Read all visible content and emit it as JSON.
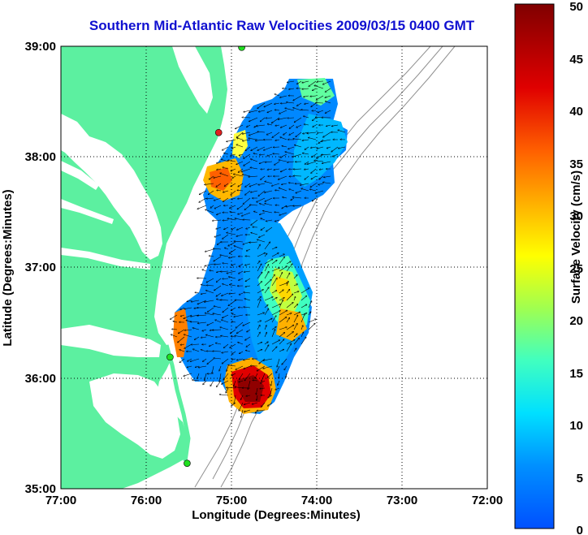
{
  "title": "Southern Mid-Atlantic Raw Velocities 2009/03/15 0400 GMT",
  "axes": {
    "xlabel": "Longitude (Degrees:Minutes)",
    "ylabel": "Latitude (Degrees:Minutes)",
    "x_ticks": [
      "77:00",
      "76:00",
      "75:00",
      "74:00",
      "73:00",
      "72:00"
    ],
    "y_ticks": [
      "39:00",
      "38:00",
      "37:00",
      "36:00",
      "35:00"
    ],
    "x_range": [
      -77,
      -72
    ],
    "y_range": [
      35,
      39
    ]
  },
  "colorbar": {
    "label": "Surface Velocity (cm/s)",
    "ticks": [
      "50",
      "45",
      "40",
      "35",
      "30",
      "25",
      "20",
      "15",
      "10",
      "5",
      "0"
    ],
    "range": [
      0,
      50
    ],
    "colors": [
      "#0050ff",
      "#00a0ff",
      "#00e8ff",
      "#40ffc0",
      "#a0ff50",
      "#ffff00",
      "#ffb000",
      "#ff5000",
      "#e00000",
      "#900000"
    ]
  },
  "colors": {
    "land": "#5cf0a0",
    "water": "#ffffff",
    "title": "#1010d0",
    "station": "#20e020",
    "station_alt": "#e02020"
  },
  "stations": [
    {
      "lon": -74.88,
      "lat": 38.99,
      "type": "green"
    },
    {
      "lon": -75.15,
      "lat": 38.22,
      "type": "red"
    },
    {
      "lon": -75.72,
      "lat": 36.19,
      "type": "green"
    },
    {
      "lon": -75.52,
      "lat": 35.23,
      "type": "green"
    }
  ]
}
